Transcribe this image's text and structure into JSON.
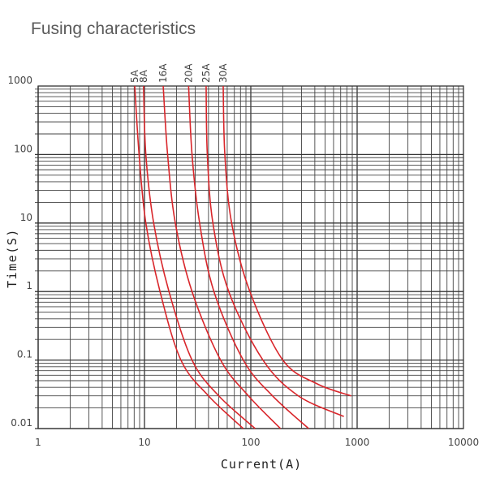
{
  "title": "Fusing characteristics",
  "chart_data": {
    "type": "line",
    "title": "Fusing characteristics",
    "xlabel": "Current(A)",
    "ylabel": "Time(S)",
    "x_scale": "log",
    "y_scale": "log",
    "xlim": [
      1,
      10000
    ],
    "ylim": [
      0.01,
      1000
    ],
    "x_ticks": [
      "1",
      "10",
      "100",
      "1000",
      "10000"
    ],
    "y_ticks": [
      "1000",
      "100",
      "10",
      "1",
      "0.1",
      "0.01"
    ],
    "grid": true,
    "line_color": "#d9262b",
    "series": [
      {
        "name": "5A",
        "points": [
          [
            8.1,
            1000
          ],
          [
            8.9,
            100
          ],
          [
            10.3,
            10
          ],
          [
            14,
            1
          ],
          [
            22,
            0.1
          ],
          [
            40,
            0.03
          ],
          [
            85,
            0.01
          ]
        ]
      },
      {
        "name": "8A",
        "points": [
          [
            9.8,
            1000
          ],
          [
            10.3,
            100
          ],
          [
            12.2,
            10
          ],
          [
            17,
            1
          ],
          [
            28,
            0.1
          ],
          [
            50,
            0.03
          ],
          [
            110,
            0.01
          ]
        ]
      },
      {
        "name": "16A",
        "points": [
          [
            15,
            1000
          ],
          [
            16.5,
            100
          ],
          [
            19.5,
            10
          ],
          [
            28,
            1
          ],
          [
            52,
            0.1
          ],
          [
            95,
            0.03
          ],
          [
            190,
            0.01
          ]
        ]
      },
      {
        "name": "20A",
        "points": [
          [
            26,
            1000
          ],
          [
            28,
            100
          ],
          [
            33,
            10
          ],
          [
            45,
            1
          ],
          [
            85,
            0.1
          ],
          [
            160,
            0.03
          ],
          [
            350,
            0.01
          ]
        ]
      },
      {
        "name": "25A",
        "points": [
          [
            38,
            1000
          ],
          [
            39,
            100
          ],
          [
            44,
            10
          ],
          [
            62,
            1
          ],
          [
            130,
            0.1
          ],
          [
            280,
            0.03
          ],
          [
            750,
            0.015
          ]
        ]
      },
      {
        "name": "30A",
        "points": [
          [
            55,
            1000
          ],
          [
            57,
            100
          ],
          [
            66,
            10
          ],
          [
            98,
            1
          ],
          [
            200,
            0.1
          ],
          [
            420,
            0.045
          ],
          [
            880,
            0.03
          ]
        ]
      }
    ]
  }
}
